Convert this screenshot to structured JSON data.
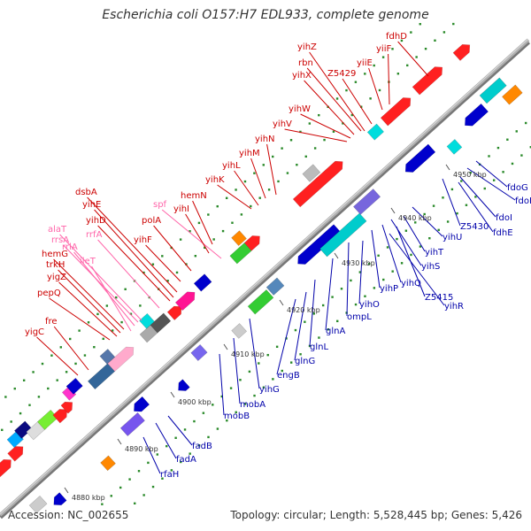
{
  "title": "Escherichia coli O157:H7 EDL933, complete genome",
  "accession_label": "Accession:",
  "accession": "NC_002655",
  "topology_label": "Topology:",
  "topology": "circular",
  "length_label": "Length:",
  "length": "5,528,445 bp",
  "genes_label": "Genes:",
  "genes": "5,426",
  "colors": {
    "backbone": "#999999",
    "forward_gene": "#ff0000",
    "reverse_gene": "#0000ff",
    "trna": "#ff99cc",
    "rrna": "#ffaacc",
    "tick_green": "#008000",
    "label_red": "#cc0000",
    "label_blue": "#0000aa",
    "label_pink": "#ff66aa"
  },
  "scale_ticks": [
    {
      "text": "4880 kbp"
    },
    {
      "text": "4890 kbp"
    },
    {
      "text": "4900 kbp"
    },
    {
      "text": "4910 kbp"
    },
    {
      "text": "4920 kbp"
    },
    {
      "text": "4930 kbp"
    },
    {
      "text": "4940 kbp"
    },
    {
      "text": "4950 kbp"
    }
  ],
  "upper_labels": [
    {
      "text": "fdhD",
      "kind": "gene"
    },
    {
      "text": "yihZ",
      "kind": "gene"
    },
    {
      "text": "yiiF",
      "kind": "gene"
    },
    {
      "text": "rbn",
      "kind": "gene"
    },
    {
      "text": "yiiE",
      "kind": "gene"
    },
    {
      "text": "Z5429",
      "kind": "gene"
    },
    {
      "text": "yihX",
      "kind": "gene"
    },
    {
      "text": "yihW",
      "kind": "gene"
    },
    {
      "text": "yihV",
      "kind": "gene"
    },
    {
      "text": "yihN",
      "kind": "gene"
    },
    {
      "text": "yihM",
      "kind": "gene"
    },
    {
      "text": "yihL",
      "kind": "gene"
    },
    {
      "text": "yihK",
      "kind": "gene"
    },
    {
      "text": "dsbA",
      "kind": "gene"
    },
    {
      "text": "spf",
      "kind": "rna"
    },
    {
      "text": "hemN",
      "kind": "gene"
    },
    {
      "text": "yihE",
      "kind": "gene"
    },
    {
      "text": "yihI",
      "kind": "gene"
    },
    {
      "text": "yihD",
      "kind": "gene"
    },
    {
      "text": "polA",
      "kind": "gene"
    },
    {
      "text": "alaT",
      "kind": "rna"
    },
    {
      "text": "rrfA",
      "kind": "rna"
    },
    {
      "text": "rrsA",
      "kind": "rna"
    },
    {
      "text": "yihF",
      "kind": "gene"
    },
    {
      "text": "rrlA",
      "kind": "rna"
    },
    {
      "text": "hemG",
      "kind": "gene"
    },
    {
      "text": "ileT",
      "kind": "rna"
    },
    {
      "text": "trkH",
      "kind": "gene"
    },
    {
      "text": "yigZ",
      "kind": "gene"
    },
    {
      "text": "pepQ",
      "kind": "gene"
    },
    {
      "text": "fre",
      "kind": "gene"
    },
    {
      "text": "yigC",
      "kind": "gene"
    }
  ],
  "lower_labels": [
    {
      "text": "fdoG"
    },
    {
      "text": "fdoH"
    },
    {
      "text": "fdoI"
    },
    {
      "text": "Z5430"
    },
    {
      "text": "fdhE"
    },
    {
      "text": "yihU"
    },
    {
      "text": "yihT"
    },
    {
      "text": "yihS"
    },
    {
      "text": "Z5415"
    },
    {
      "text": "yihQ"
    },
    {
      "text": "yihR"
    },
    {
      "text": "yihP"
    },
    {
      "text": "yihO"
    },
    {
      "text": "ompL"
    },
    {
      "text": "glnA"
    },
    {
      "text": "glnL"
    },
    {
      "text": "glnG"
    },
    {
      "text": "engB"
    },
    {
      "text": "yihG"
    },
    {
      "text": "mobA"
    },
    {
      "text": "mobB"
    },
    {
      "text": "fadB"
    },
    {
      "text": "fadA"
    },
    {
      "text": "rfaH"
    }
  ]
}
